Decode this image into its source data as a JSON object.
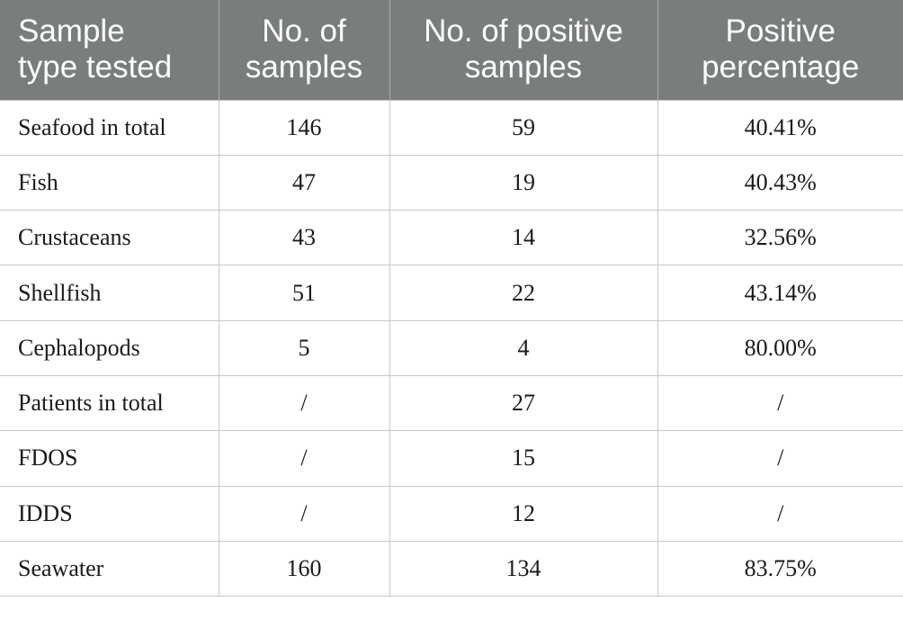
{
  "table": {
    "headers": [
      [
        "Sample",
        "type tested"
      ],
      [
        "No. of",
        "samples"
      ],
      [
        "No. of positive",
        "samples"
      ],
      [
        "Positive",
        "percentage"
      ]
    ],
    "rows": [
      [
        "Seafood in total",
        "146",
        "59",
        "40.41%"
      ],
      [
        "Fish",
        "47",
        "19",
        "40.43%"
      ],
      [
        "Crustaceans",
        "43",
        "14",
        "32.56%"
      ],
      [
        "Shellfish",
        "51",
        "22",
        "43.14%"
      ],
      [
        "Cephalopods",
        "5",
        "4",
        "80.00%"
      ],
      [
        "Patients in total",
        "/",
        "27",
        "/"
      ],
      [
        "FDOS",
        "/",
        "15",
        "/"
      ],
      [
        "IDDS",
        "/",
        "12",
        "/"
      ],
      [
        "Seawater",
        "160",
        "134",
        "83.75%"
      ]
    ]
  }
}
